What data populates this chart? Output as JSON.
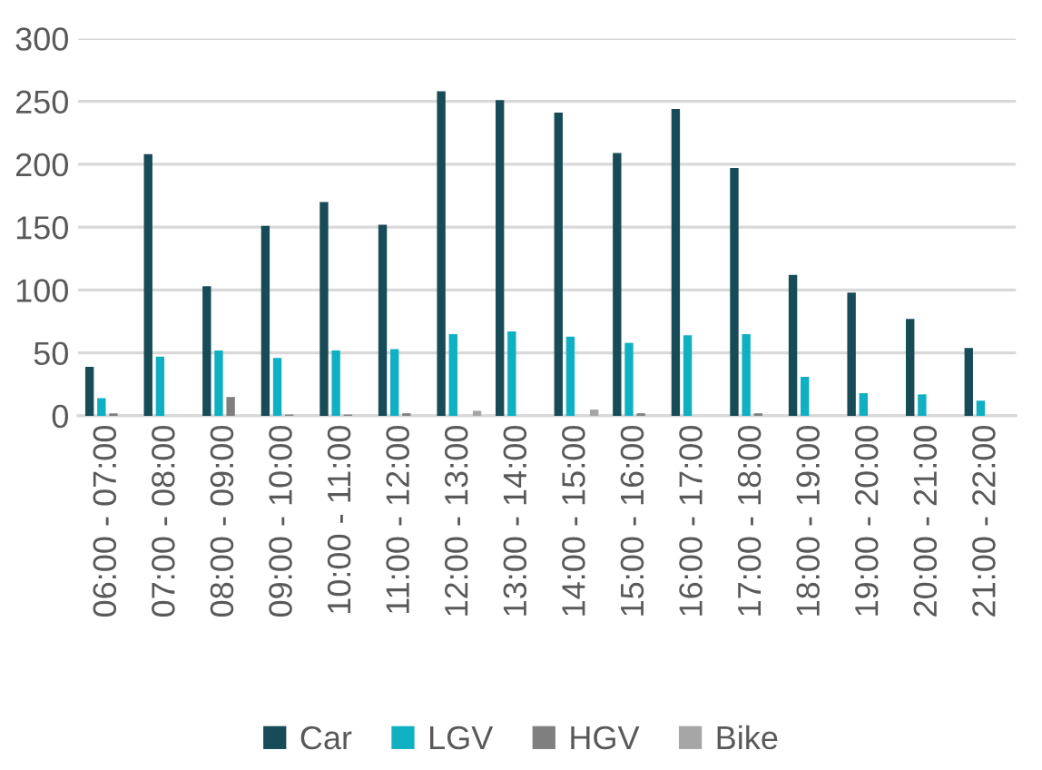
{
  "chart_data": {
    "type": "bar",
    "categories": [
      "06:00 - 07:00",
      "07:00 - 08:00",
      "08:00 - 09:00",
      "09:00 - 10:00",
      "10:00 - 11:00",
      "11:00 - 12:00",
      "12:00 - 13:00",
      "13:00 - 14:00",
      "14:00 - 15:00",
      "15:00 - 16:00",
      "16:00 - 17:00",
      "17:00 - 18:00",
      "18:00 - 19:00",
      "19:00 - 20:00",
      "20:00 - 21:00",
      "21:00 - 22:00"
    ],
    "series": [
      {
        "name": "Car",
        "color": "#174b58",
        "values": [
          39,
          208,
          103,
          151,
          170,
          152,
          258,
          251,
          241,
          209,
          244,
          197,
          112,
          98,
          77,
          54
        ]
      },
      {
        "name": "LGV",
        "color": "#10b0c3",
        "values": [
          14,
          47,
          52,
          46,
          52,
          53,
          65,
          67,
          63,
          58,
          64,
          65,
          31,
          18,
          17,
          12
        ]
      },
      {
        "name": "HGV",
        "color": "#7f7f7f",
        "values": [
          2,
          0,
          15,
          1,
          1,
          2,
          0,
          0,
          0,
          2,
          0,
          2,
          0,
          0,
          0,
          0
        ]
      },
      {
        "name": "Bike",
        "color": "#a6a6a6",
        "values": [
          null,
          null,
          0,
          null,
          null,
          null,
          4,
          0,
          5,
          null,
          0,
          null,
          0,
          0,
          0,
          0
        ]
      }
    ],
    "ylim": [
      0,
      300
    ],
    "yticks": [
      0,
      50,
      100,
      150,
      200,
      250,
      300
    ],
    "grid": "y",
    "legend": "bottom"
  }
}
